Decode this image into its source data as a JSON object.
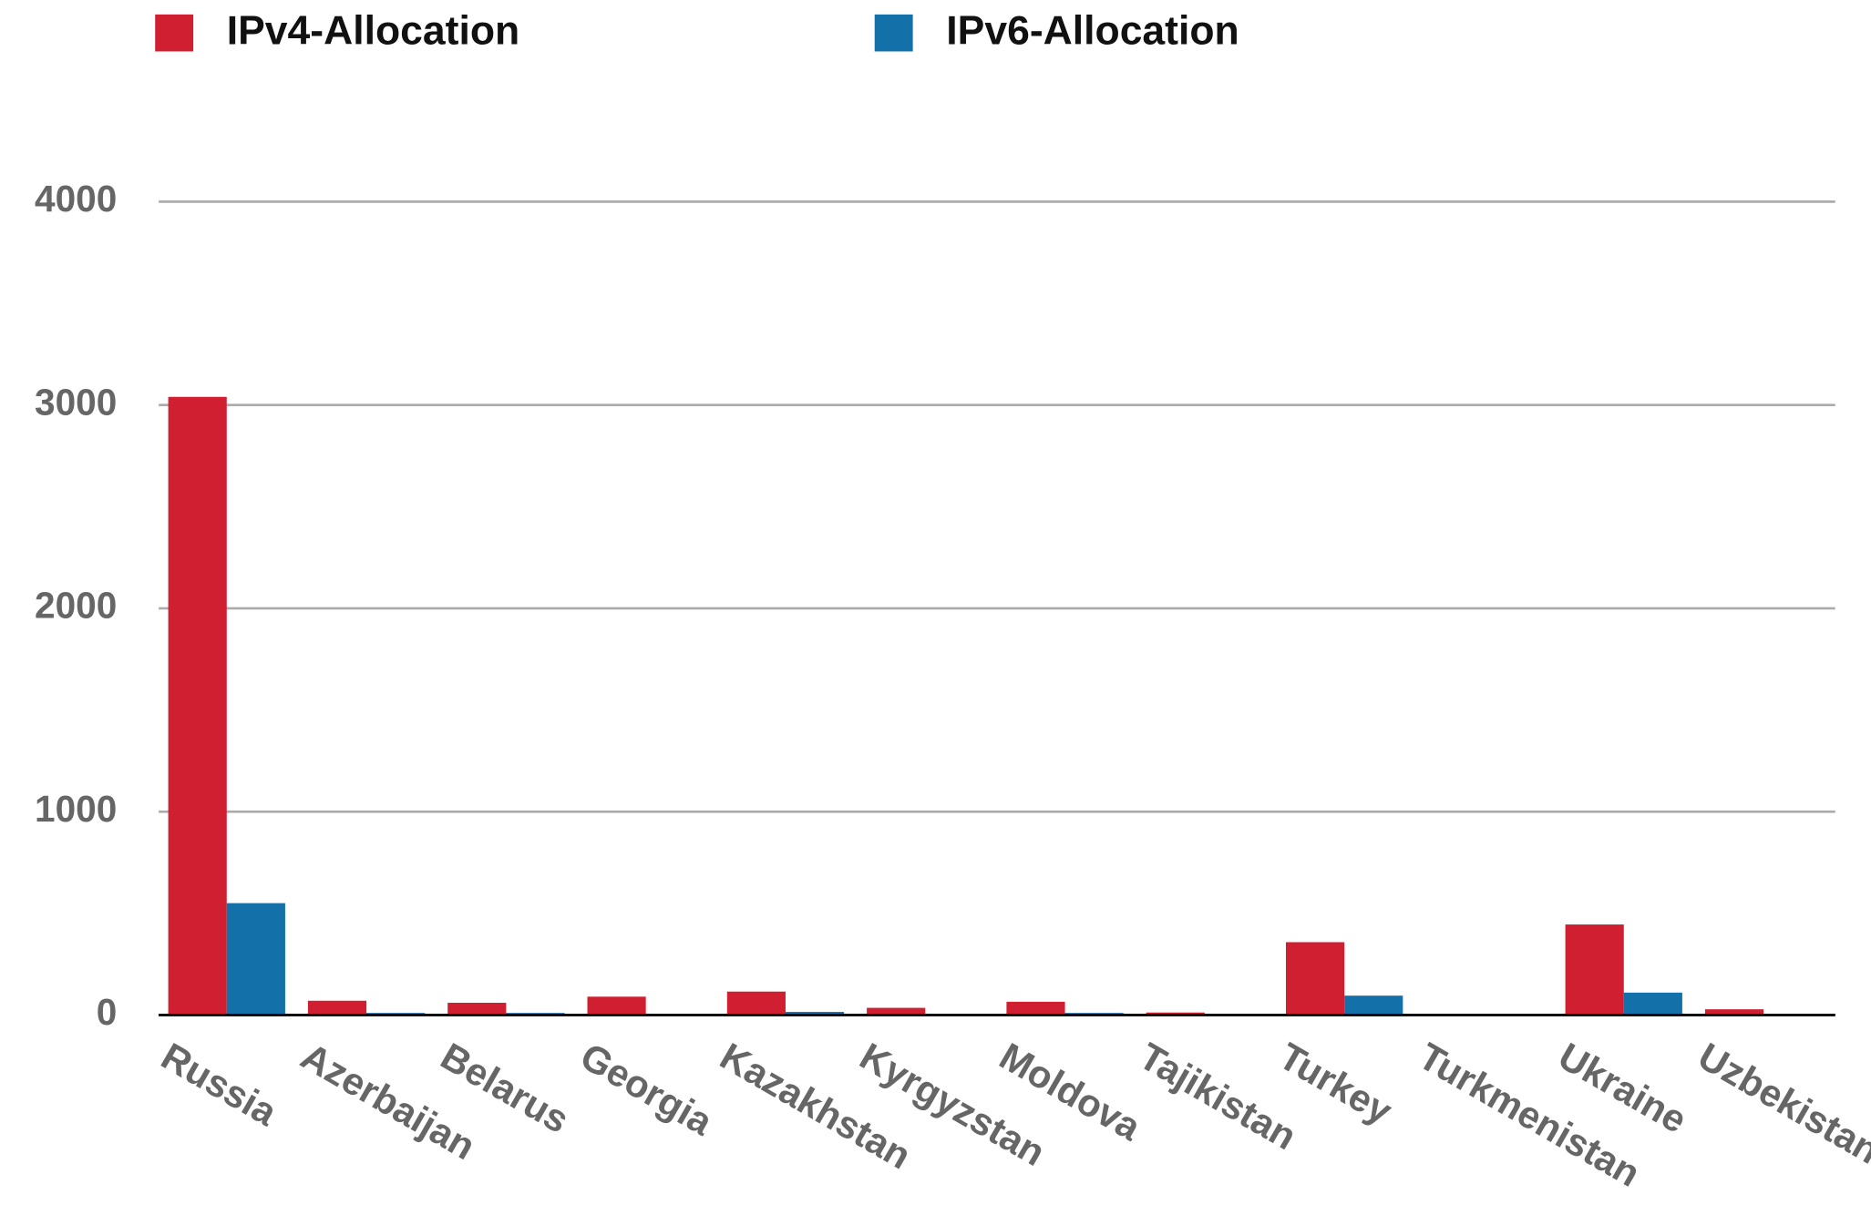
{
  "chart_data": {
    "type": "bar",
    "categories": [
      "Russia",
      "Azerbaijan",
      "Belarus",
      "Georgia",
      "Kazakhstan",
      "Kyrgyzstan",
      "Moldova",
      "Tajikistan",
      "Turkey",
      "Turkmenistan",
      "Ukraine",
      "Uzbekistan"
    ],
    "series": [
      {
        "name": "IPv4-Allocation",
        "color": "#d01f30",
        "values": [
          3040,
          70,
          60,
          90,
          115,
          35,
          65,
          12,
          358,
          0,
          445,
          28
        ]
      },
      {
        "name": "IPv6-Allocation",
        "color": "#1470a8",
        "values": [
          550,
          10,
          10,
          5,
          15,
          2,
          10,
          0,
          95,
          0,
          110,
          0
        ]
      }
    ],
    "ylim": [
      0,
      4000
    ],
    "yticks": [
      0,
      1000,
      2000,
      3000,
      4000
    ],
    "grid": true,
    "legend": "top"
  }
}
